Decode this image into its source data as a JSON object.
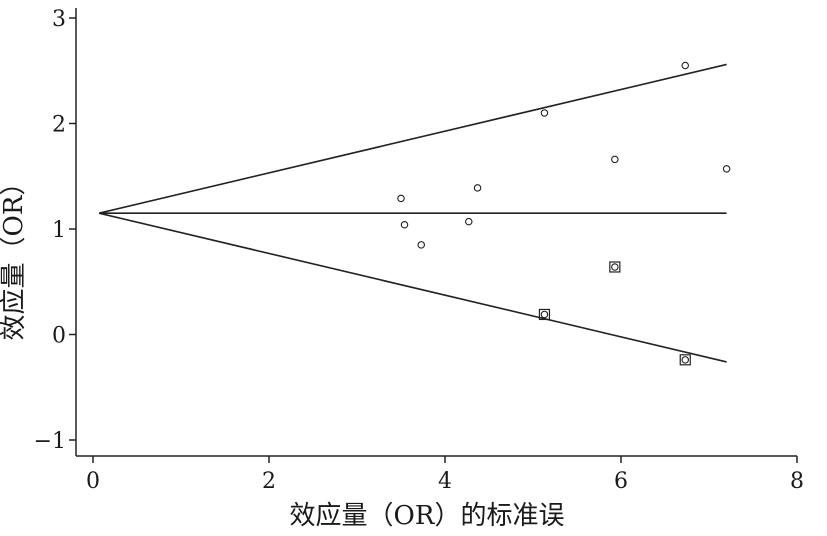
{
  "chart_data": {
    "type": "scatter",
    "title": "",
    "xlabel": "效应量（OR）的标准误",
    "ylabel": "效应量（OR）",
    "xlim": [
      0,
      8
    ],
    "ylim": [
      -1,
      3
    ],
    "x_ticks": [
      0,
      2,
      4,
      6,
      8
    ],
    "x_tick_labels": [
      "0",
      "2",
      "4",
      "6",
      "8"
    ],
    "y_ticks": [
      -1,
      0,
      1,
      2,
      3
    ],
    "y_tick_labels": [
      "−1",
      "0",
      "1",
      "2",
      "3"
    ],
    "grid": false,
    "series": [
      {
        "marker": "circle",
        "points": [
          {
            "x": 3.5,
            "y": 1.29
          },
          {
            "x": 3.54,
            "y": 1.04
          },
          {
            "x": 3.73,
            "y": 0.85
          },
          {
            "x": 4.27,
            "y": 1.07
          },
          {
            "x": 4.37,
            "y": 1.39
          },
          {
            "x": 5.13,
            "y": 2.1
          },
          {
            "x": 5.93,
            "y": 1.66
          },
          {
            "x": 6.73,
            "y": 2.55
          },
          {
            "x": 7.2,
            "y": 1.57
          }
        ]
      },
      {
        "marker": "boxed-circle",
        "points": [
          {
            "x": 5.13,
            "y": 0.19
          },
          {
            "x": 5.93,
            "y": 0.64
          },
          {
            "x": 6.73,
            "y": -0.24
          }
        ]
      }
    ],
    "lines": [
      {
        "role": "pooled-estimate",
        "x": [
          0.07,
          7.2
        ],
        "y": [
          1.15,
          1.15
        ]
      },
      {
        "role": "upper-limit",
        "x": [
          0.07,
          7.2
        ],
        "y": [
          1.15,
          2.56
        ]
      },
      {
        "role": "lower-limit",
        "x": [
          0.07,
          7.2
        ],
        "y": [
          1.15,
          -0.26
        ]
      }
    ]
  }
}
